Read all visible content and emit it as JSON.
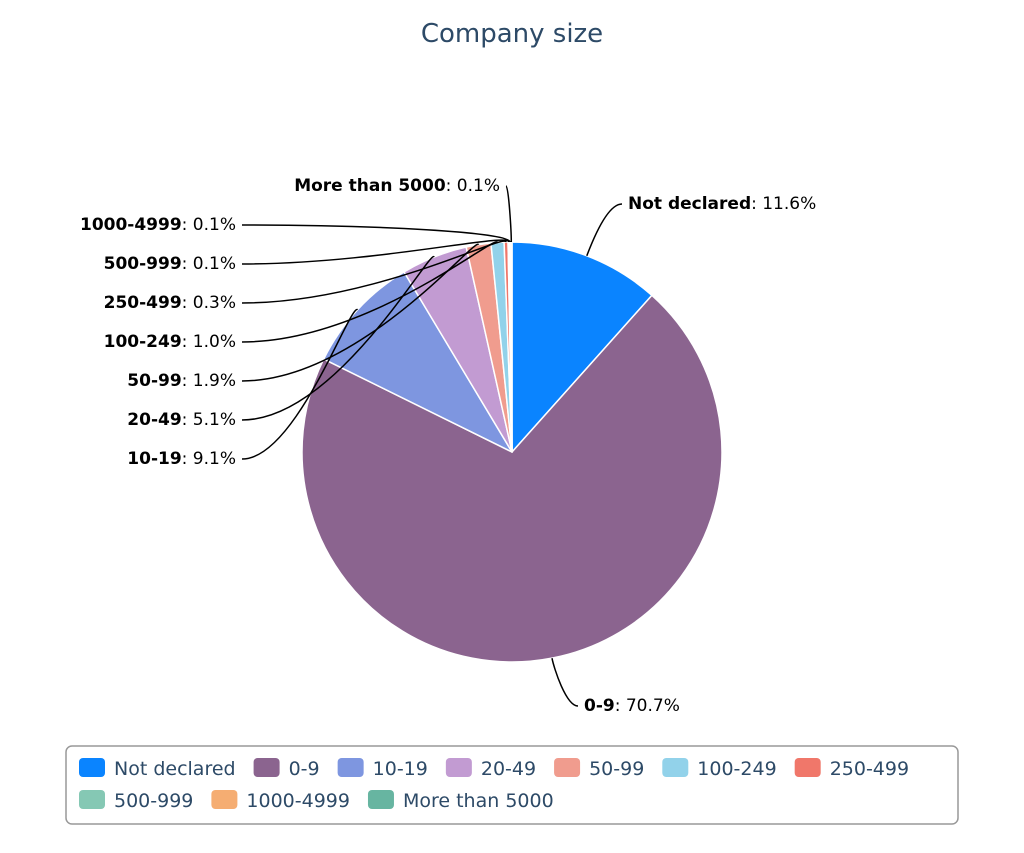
{
  "chart_data": {
    "type": "pie",
    "title": "Company size",
    "categories": [
      "Not declared",
      "0-9",
      "10-19",
      "20-49",
      "50-99",
      "100-249",
      "250-499",
      "500-999",
      "1000-4999",
      "More than 5000"
    ],
    "values": [
      11.6,
      70.7,
      9.1,
      5.1,
      1.9,
      1.0,
      0.3,
      0.1,
      0.1,
      0.1
    ],
    "value_labels": [
      "11.6%",
      "70.7%",
      "9.1%",
      "5.1%",
      "1.9%",
      "1.0%",
      "0.3%",
      "0.1%",
      "0.1%",
      "0.1%"
    ],
    "colors": [
      "#0a84ff",
      "#8b648f",
      "#7e96e0",
      "#c29bd2",
      "#f09c8e",
      "#92d2ea",
      "#f0776a",
      "#85c8b4",
      "#f5ad72",
      "#67b5a1"
    ],
    "legend_position": "bottom"
  }
}
